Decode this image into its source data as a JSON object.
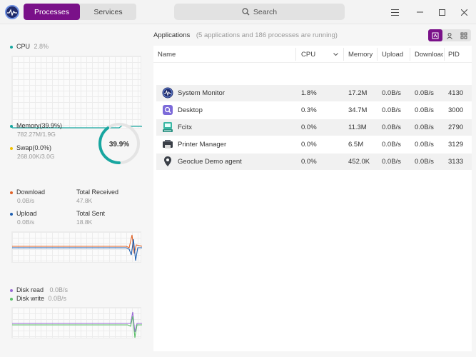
{
  "titlebar": {
    "tabs": [
      {
        "label": "Processes",
        "active": true
      },
      {
        "label": "Services",
        "active": false
      }
    ],
    "search_label": "Search",
    "accent_color": "#7a1189"
  },
  "cpu": {
    "label": "CPU",
    "value": "2.8%",
    "color": "#17a6a0"
  },
  "memory": {
    "label": "Memory(39.9%)",
    "detail": "782.27M/1.9G",
    "swap_label": "Swap(0.0%)",
    "swap_detail": "268.00K/3.0G",
    "gauge_label": "39.9%",
    "gauge_fraction": 0.399,
    "color": "#17a6a0",
    "swap_color": "#f2c100"
  },
  "network": {
    "download_label": "Download",
    "download_value": "0.0B/s",
    "total_received_label": "Total Received",
    "total_received_value": "47.8K",
    "upload_label": "Upload",
    "upload_value": "0.0B/s",
    "total_sent_label": "Total Sent",
    "total_sent_value": "18.8K",
    "download_color": "#e0642a",
    "upload_color": "#1f5fb0"
  },
  "disk": {
    "read_label": "Disk read",
    "read_value": "0.0B/s",
    "write_label": "Disk write",
    "write_value": "0.0B/s",
    "read_color": "#9a6ad6",
    "write_color": "#5cc06a"
  },
  "applications": {
    "title": "Applications",
    "summary": "(5 applications and 186 processes are running)",
    "columns": [
      "Name",
      "CPU",
      "Memory",
      "Upload",
      "Download",
      "PID"
    ],
    "rows": [
      {
        "icon": "system-monitor-icon",
        "name": "System Monitor",
        "cpu": "1.8%",
        "memory": "17.2M",
        "upload": "0.0B/s",
        "download": "0.0B/s",
        "pid": "4130"
      },
      {
        "icon": "desktop-icon",
        "name": "Desktop",
        "cpu": "0.3%",
        "memory": "34.7M",
        "upload": "0.0B/s",
        "download": "0.0B/s",
        "pid": "3000"
      },
      {
        "icon": "fcitx-icon",
        "name": "Fcitx",
        "cpu": "0.0%",
        "memory": "11.3M",
        "upload": "0.0B/s",
        "download": "0.0B/s",
        "pid": "2790"
      },
      {
        "icon": "printer-icon",
        "name": "Printer Manager",
        "cpu": "0.0%",
        "memory": "6.5M",
        "upload": "0.0B/s",
        "download": "0.0B/s",
        "pid": "3129"
      },
      {
        "icon": "location-pin-icon",
        "name": "Geoclue Demo agent",
        "cpu": "0.0%",
        "memory": "452.0K",
        "upload": "0.0B/s",
        "download": "0.0B/s",
        "pid": "3133"
      }
    ]
  }
}
